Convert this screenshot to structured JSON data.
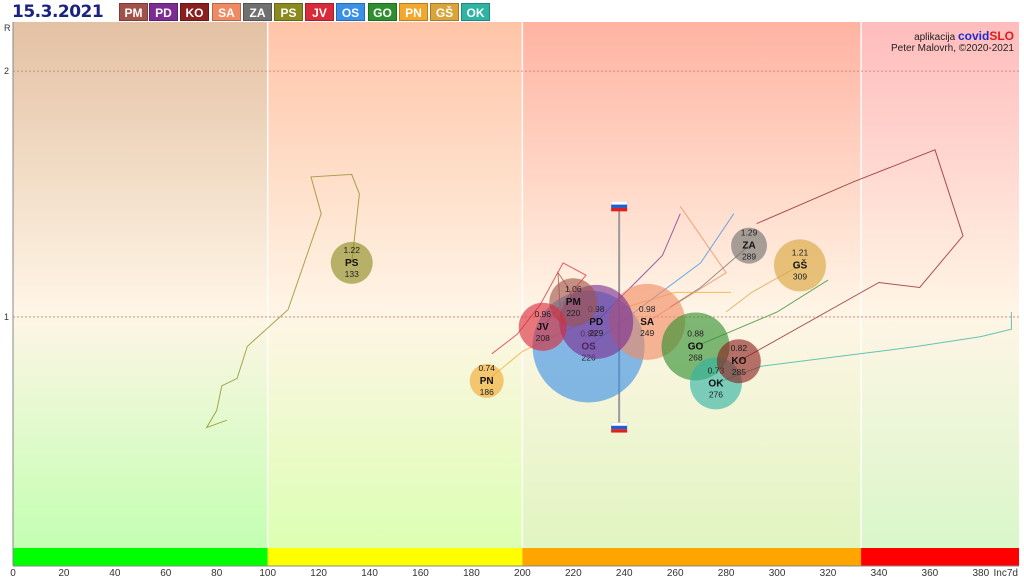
{
  "header": {
    "date": "15.3.2021",
    "regions": [
      {
        "code": "PM",
        "color": "#a0524a"
      },
      {
        "code": "PD",
        "color": "#7b2d91"
      },
      {
        "code": "KO",
        "color": "#8b1f1f"
      },
      {
        "code": "SA",
        "color": "#f08a63"
      },
      {
        "code": "ZA",
        "color": "#707070"
      },
      {
        "code": "PS",
        "color": "#8a8a1f"
      },
      {
        "code": "JV",
        "color": "#d92a3a"
      },
      {
        "code": "OS",
        "color": "#3a8fe6"
      },
      {
        "code": "GO",
        "color": "#2f8f2f"
      },
      {
        "code": "PN",
        "color": "#f2a82e"
      },
      {
        "code": "GŠ",
        "color": "#d9a43a"
      },
      {
        "code": "OK",
        "color": "#2fb3a3"
      }
    ]
  },
  "credits": {
    "app_prefix": "aplikacija",
    "app_name_a": "covid",
    "app_name_b": "SLO",
    "author": "Peter Malovrh, ©2020-2021"
  },
  "chart_data": {
    "type": "scatter",
    "xlabel": "Inc7d",
    "ylabel": "R",
    "xlim": [
      0,
      395
    ],
    "ylim": [
      0.06,
      2.2
    ],
    "x_ticks": [
      0,
      20,
      40,
      60,
      80,
      100,
      120,
      140,
      160,
      180,
      200,
      220,
      240,
      260,
      280,
      300,
      320,
      340,
      360,
      380
    ],
    "y_ticks": [
      1,
      2
    ],
    "zones": [
      {
        "from": 0,
        "to": 100,
        "color": "#00ff00"
      },
      {
        "from": 100,
        "to": 200,
        "color": "#ffff00"
      },
      {
        "from": 200,
        "to": 333,
        "color": "#ffa500"
      },
      {
        "from": 333,
        "to": 395,
        "color": "#ff0000"
      }
    ],
    "slovenia_range": {
      "x": 238,
      "y_low": 0.55,
      "y_high": 1.45
    },
    "points": [
      {
        "code": "PS",
        "r": 1.22,
        "inc": 133,
        "color": "#8a8a1f",
        "size": 21,
        "trail": [
          [
            133,
            1.22
          ],
          [
            136,
            1.5
          ],
          [
            133,
            1.58
          ],
          [
            117,
            1.57
          ],
          [
            121,
            1.42
          ],
          [
            108,
            1.03
          ],
          [
            92,
            0.88
          ],
          [
            88,
            0.75
          ],
          [
            82,
            0.72
          ],
          [
            80,
            0.62
          ],
          [
            76,
            0.55
          ],
          [
            84,
            0.58
          ]
        ]
      },
      {
        "code": "PM",
        "r": 1.06,
        "inc": 220,
        "color": "#a0524a",
        "size": 24,
        "trail": [
          [
            220,
            1.06
          ],
          [
            218,
            1.12
          ],
          [
            214,
            1.18
          ],
          [
            215,
            1.0
          ]
        ]
      },
      {
        "code": "PD",
        "r": 0.98,
        "inc": 229,
        "color": "#7b2d91",
        "size": 37,
        "trail": [
          [
            229,
            0.98
          ],
          [
            255,
            1.25
          ],
          [
            262,
            1.42
          ]
        ]
      },
      {
        "code": "JV",
        "r": 0.96,
        "inc": 208,
        "color": "#d92a3a",
        "size": 24,
        "trail": [
          [
            208,
            0.96
          ],
          [
            225,
            1.17
          ],
          [
            216,
            1.22
          ],
          [
            207,
            1.05
          ],
          [
            198,
            0.93
          ],
          [
            188,
            0.85
          ]
        ]
      },
      {
        "code": "SA",
        "r": 0.98,
        "inc": 249,
        "color": "#f08a63",
        "size": 38,
        "trail": [
          [
            249,
            0.98
          ],
          [
            280,
            1.18
          ],
          [
            262,
            1.45
          ]
        ]
      },
      {
        "code": "OS",
        "r": 0.88,
        "inc": 226,
        "color": "#3a8fe6",
        "size": 56,
        "trail": [
          [
            226,
            0.88
          ],
          [
            270,
            1.22
          ],
          [
            283,
            1.42
          ]
        ]
      },
      {
        "code": "ZA",
        "r": 1.29,
        "inc": 289,
        "color": "#707070",
        "size": 18,
        "trail": [
          [
            289,
            1.29
          ],
          [
            270,
            1.12
          ],
          [
            258,
            1.04
          ]
        ]
      },
      {
        "code": "GŠ",
        "r": 1.21,
        "inc": 309,
        "color": "#d9a43a",
        "size": 26,
        "trail": [
          [
            309,
            1.21
          ],
          [
            290,
            1.1
          ],
          [
            280,
            1.02
          ]
        ]
      },
      {
        "code": "GO",
        "r": 0.88,
        "inc": 268,
        "color": "#2f8f2f",
        "size": 34,
        "trail": [
          [
            268,
            0.88
          ],
          [
            300,
            1.02
          ],
          [
            320,
            1.15
          ]
        ]
      },
      {
        "code": "KO",
        "r": 0.82,
        "inc": 285,
        "color": "#8b1f1f",
        "size": 22,
        "trail": [
          [
            285,
            0.82
          ],
          [
            340,
            1.14
          ],
          [
            356,
            1.12
          ],
          [
            373,
            1.33
          ],
          [
            362,
            1.68
          ],
          [
            330,
            1.55
          ],
          [
            292,
            1.38
          ]
        ]
      },
      {
        "code": "OK",
        "r": 0.73,
        "inc": 276,
        "color": "#2fb3a3",
        "size": 26,
        "trail": [
          [
            276,
            0.73
          ],
          [
            294,
            0.8
          ],
          [
            340,
            0.86
          ],
          [
            355,
            0.88
          ],
          [
            380,
            0.92
          ],
          [
            392,
            0.95
          ],
          [
            392,
            1.02
          ]
        ]
      },
      {
        "code": "PN",
        "r": 0.74,
        "inc": 186,
        "color": "#f2a82e",
        "size": 17,
        "trail": [
          [
            186,
            0.74
          ],
          [
            200,
            0.86
          ],
          [
            228,
            1.0
          ],
          [
            260,
            1.1
          ],
          [
            282,
            1.1
          ]
        ]
      }
    ]
  }
}
